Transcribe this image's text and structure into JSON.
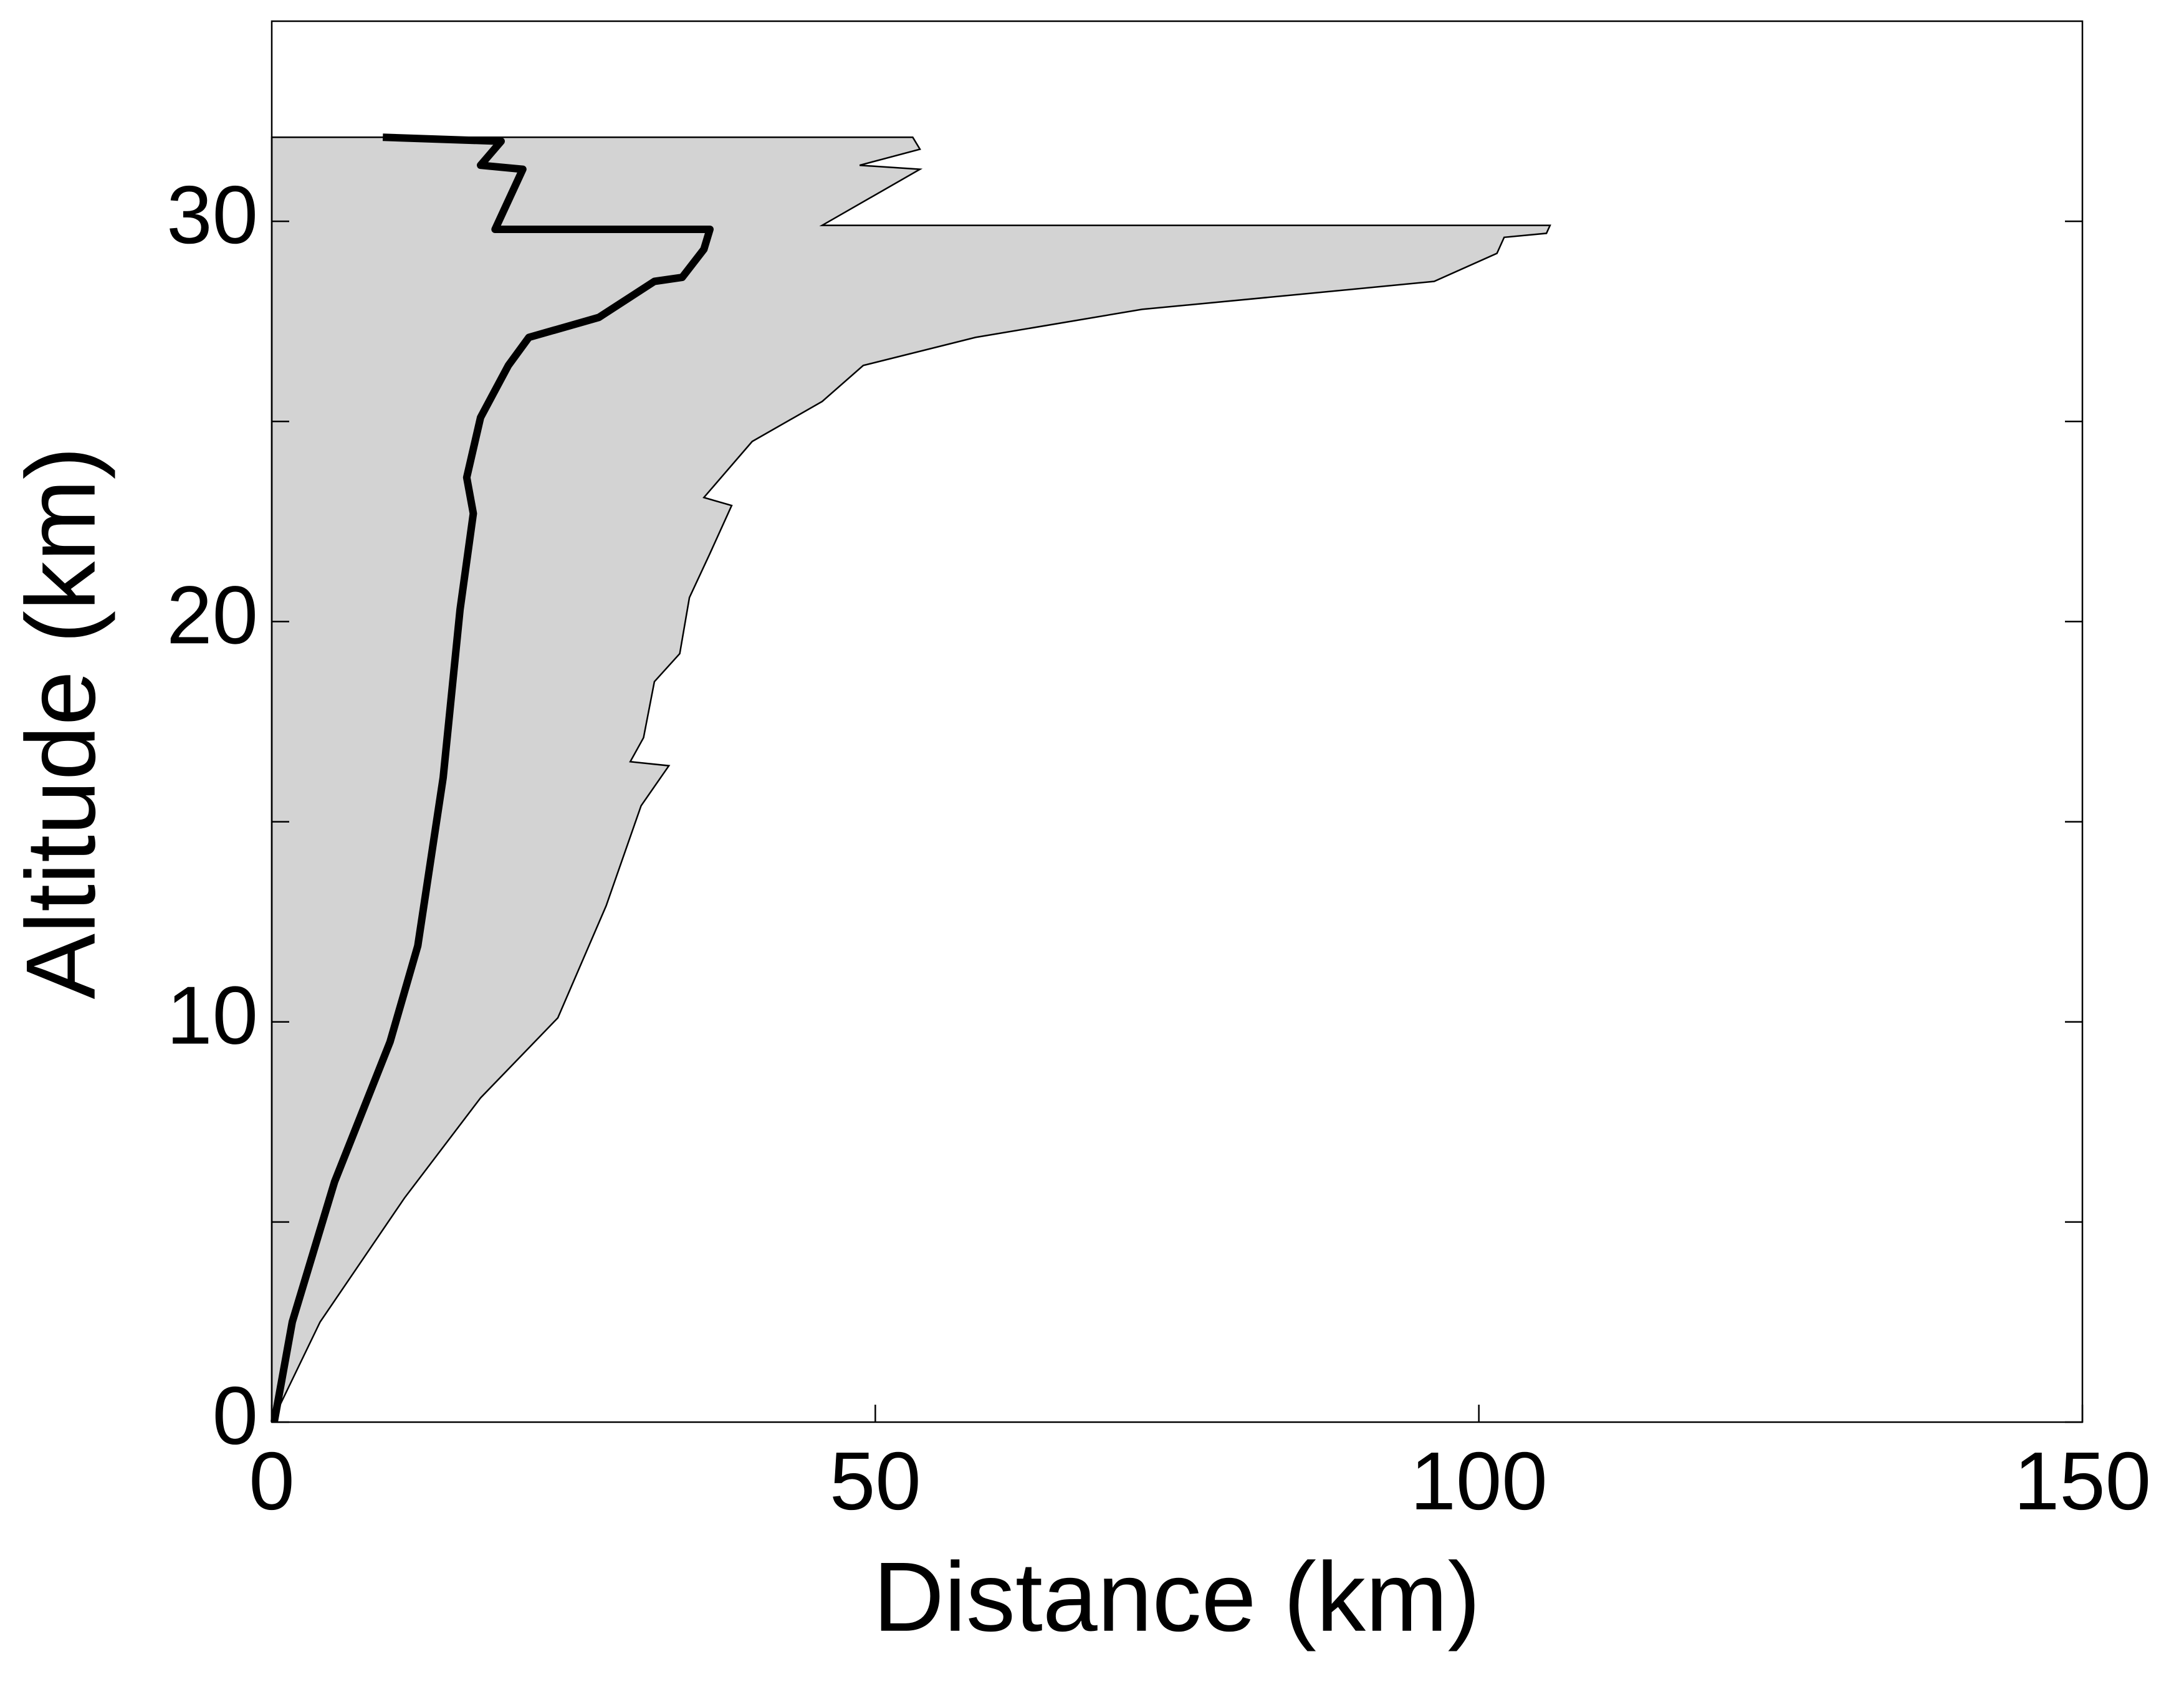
{
  "chart_data": {
    "type": "line",
    "xlabel": "Distance (km)",
    "ylabel": "Altitude (km)",
    "xlim": [
      0,
      150
    ],
    "xticks": [
      0,
      50,
      100,
      150
    ],
    "ylim": [
      0,
      35
    ],
    "yticks": [
      0,
      10,
      20,
      30
    ],
    "yminorticks": [
      5,
      15,
      25
    ],
    "series": [
      {
        "kind": "area",
        "color": "#d3d3d3",
        "x": [
          0,
          4,
          11,
          17.3,
          23.7,
          27.7,
          30.6,
          32.9,
          29.7,
          30.8,
          31.7,
          33.8,
          34.6,
          36.3,
          38.1,
          35.8,
          39.8,
          45.6,
          49,
          58.3,
          72.1,
          86,
          96.3,
          101.5,
          102.1,
          105.6,
          105.9,
          45.6,
          53.7,
          48.7,
          53.7,
          53.1,
          0
        ],
        "y": [
          0,
          2.5,
          5.6,
          8.1,
          10.1,
          12.9,
          15.4,
          16.4,
          16.5,
          17.1,
          18.5,
          19.2,
          20.6,
          21.7,
          22.9,
          23.1,
          24.5,
          25.5,
          26.4,
          27.1,
          27.8,
          28.2,
          28.5,
          29.2,
          29.6,
          29.7,
          29.9,
          29.9,
          31.3,
          31.4,
          31.8,
          32.1,
          32.1
        ]
      },
      {
        "kind": "line",
        "color": "#000000",
        "x": [
          0.2,
          1.7,
          5.2,
          9.8,
          12.1,
          14.2,
          15.6,
          16.7,
          16.15,
          17.3,
          19.6,
          21.3,
          27.1,
          31.7,
          34,
          35.8,
          36.3,
          18.5,
          20.8,
          17.3,
          19,
          9.2
        ],
        "y": [
          0,
          2.5,
          6,
          9.5,
          11.9,
          16.1,
          20.3,
          22.7,
          23.6,
          25.1,
          26.4,
          27.1,
          27.6,
          28.5,
          28.6,
          29.3,
          29.8,
          29.8,
          31.3,
          31.4,
          32,
          32.1
        ]
      }
    ]
  }
}
